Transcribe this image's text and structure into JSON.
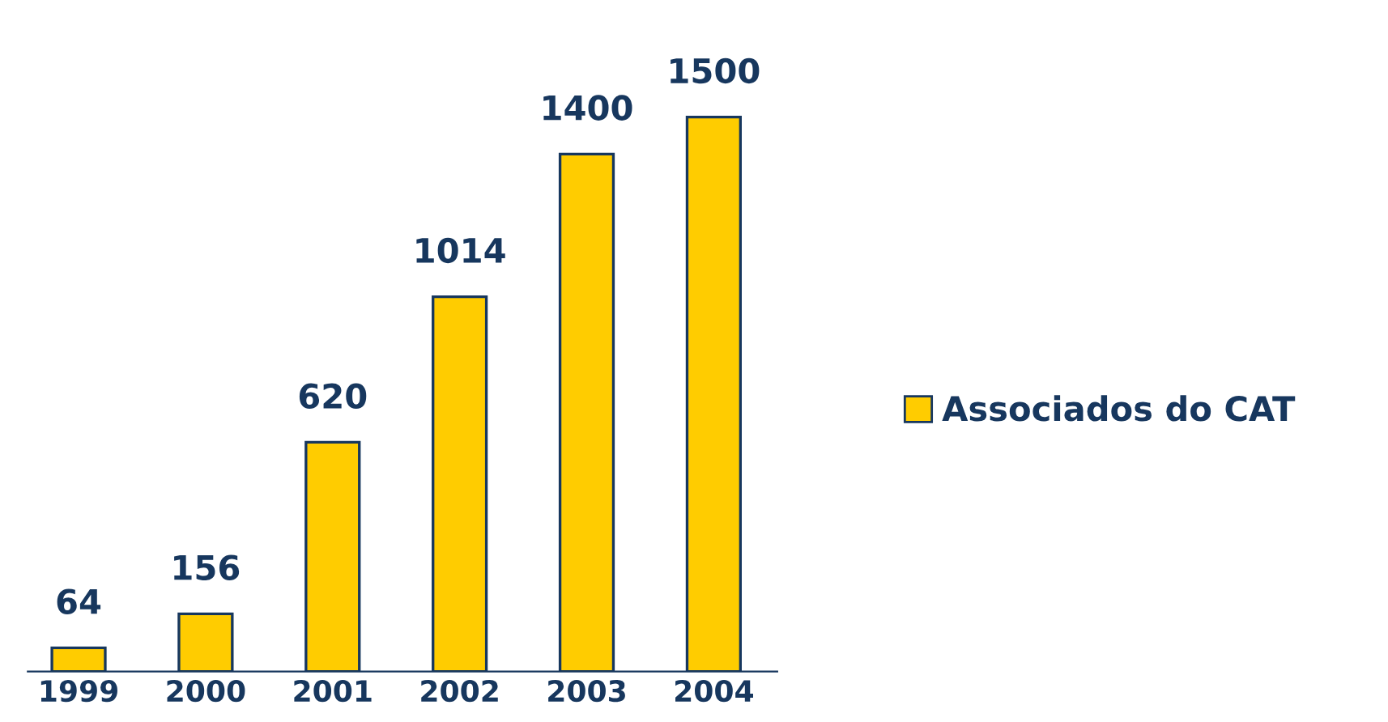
{
  "chart_data": {
    "type": "bar",
    "categories": [
      "1999",
      "2000",
      "2001",
      "2002",
      "2003",
      "2004"
    ],
    "series": [
      {
        "name": "Associados do CAT",
        "color": "#ffcc00",
        "values": [
          64,
          156,
          620,
          1014,
          1400,
          1500
        ]
      }
    ],
    "data_labels": true,
    "legend": "right"
  }
}
